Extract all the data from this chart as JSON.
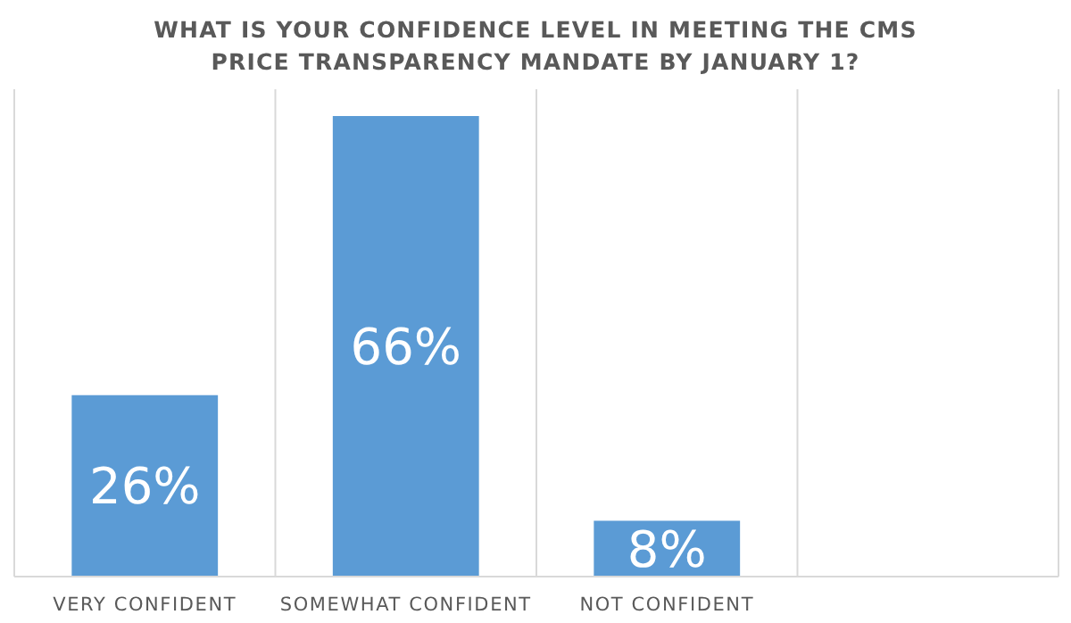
{
  "chart_data": {
    "type": "bar",
    "title": "WHAT IS YOUR CONFIDENCE LEVEL IN MEETING THE CMS PRICE TRANSPARENCY MANDATE BY JANUARY 1?",
    "categories": [
      "VERY CONFIDENT",
      "SOMEWHAT CONFIDENT",
      "NOT CONFIDENT",
      null
    ],
    "values": [
      26,
      66,
      8,
      null
    ],
    "value_labels": [
      "26%",
      "66%",
      "8%",
      null
    ],
    "color": "#5b9bd5",
    "grid": "x"
  }
}
